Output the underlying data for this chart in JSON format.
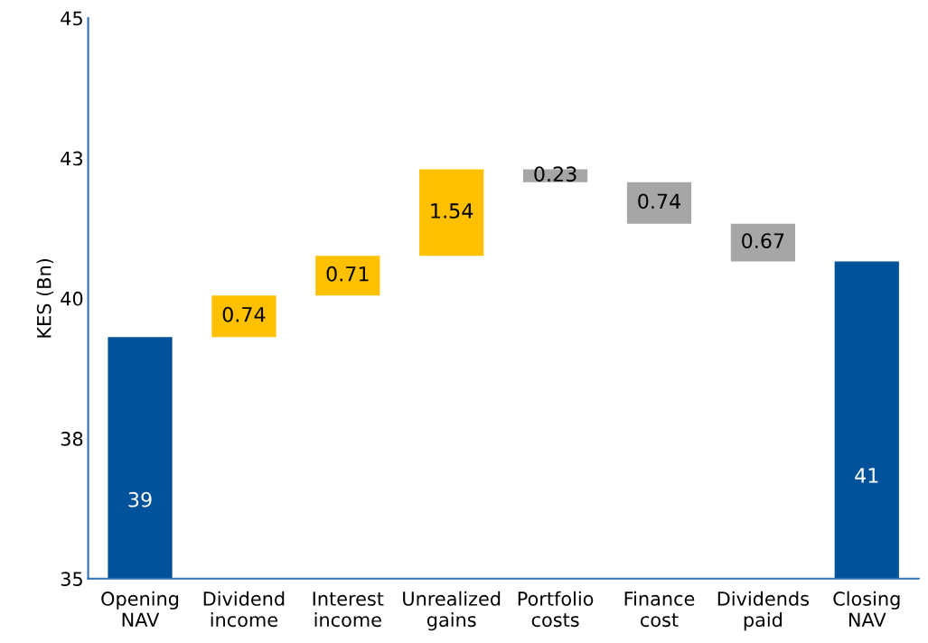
{
  "chart_data": {
    "type": "bar",
    "ylabel": "KES (Bn)",
    "categories": [
      "Opening\nNAV",
      "Dividend\nincome",
      "Interest\nincome",
      "Unrealized\ngains",
      "Portfolio\ncosts",
      "Finance\ncost",
      "Dividends\npaid",
      "Closing\nNAV"
    ],
    "values": [
      39.31,
      0.74,
      0.71,
      1.54,
      -0.23,
      -0.74,
      -0.67,
      40.66
    ],
    "base": [
      null,
      39.31,
      40.05,
      40.76,
      42.3,
      42.07,
      41.33,
      null
    ],
    "colors": [
      "#00529b",
      "#ffc000",
      "#ffc000",
      "#ffc000",
      "#a6a6a6",
      "#a6a6a6",
      "#a6a6a6",
      "#00529b"
    ],
    "value_labels": [
      "39",
      "0.74",
      "0.71",
      "1.54",
      "0.23",
      "0.74",
      "0.67",
      "41"
    ],
    "ylim": [
      35,
      45
    ],
    "yticks": [
      35,
      {
        "value": 37.5,
        "label": "38"
      },
      40,
      {
        "value": 42.5,
        "label": "43"
      },
      45
    ],
    "grid": false,
    "legend": false
  }
}
